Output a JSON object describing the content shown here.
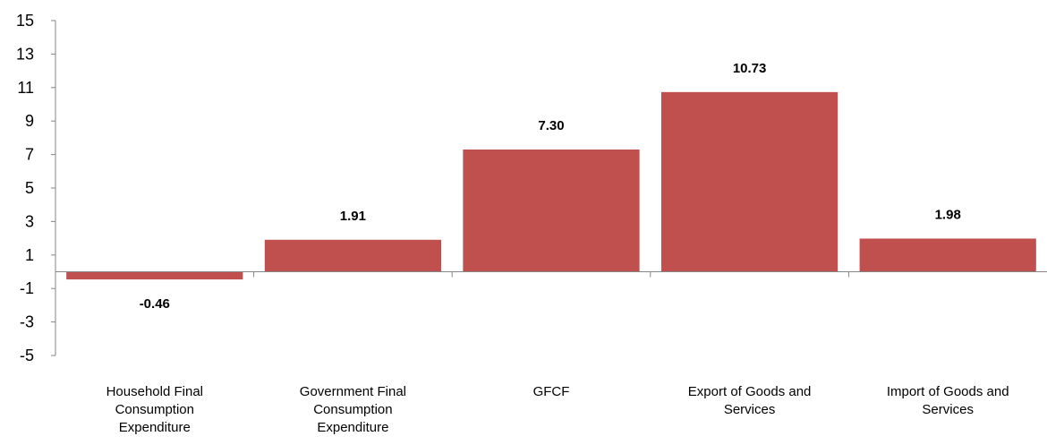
{
  "chart_data": {
    "type": "bar",
    "title": "",
    "xlabel": "",
    "ylabel": "",
    "categories": [
      [
        "Household Final",
        "Consumption",
        "Expenditure"
      ],
      [
        "Government Final",
        "Consumption",
        "Expenditure"
      ],
      [
        "GFCF"
      ],
      [
        "Export of Goods and",
        "Services"
      ],
      [
        "Import of Goods and",
        "Services"
      ]
    ],
    "values": [
      -0.46,
      1.91,
      7.3,
      10.73,
      1.98
    ],
    "data_labels": [
      "-0.46",
      "1.91",
      "7.30",
      "10.73",
      "1.98"
    ],
    "ylim": [
      -5,
      15
    ],
    "yticks": [
      "15",
      "13",
      "11",
      "9",
      "7",
      "5",
      "3",
      "1",
      "-1",
      "-3",
      "-5"
    ],
    "grid": false,
    "legend": "none",
    "bar_color": "#C0504D"
  }
}
